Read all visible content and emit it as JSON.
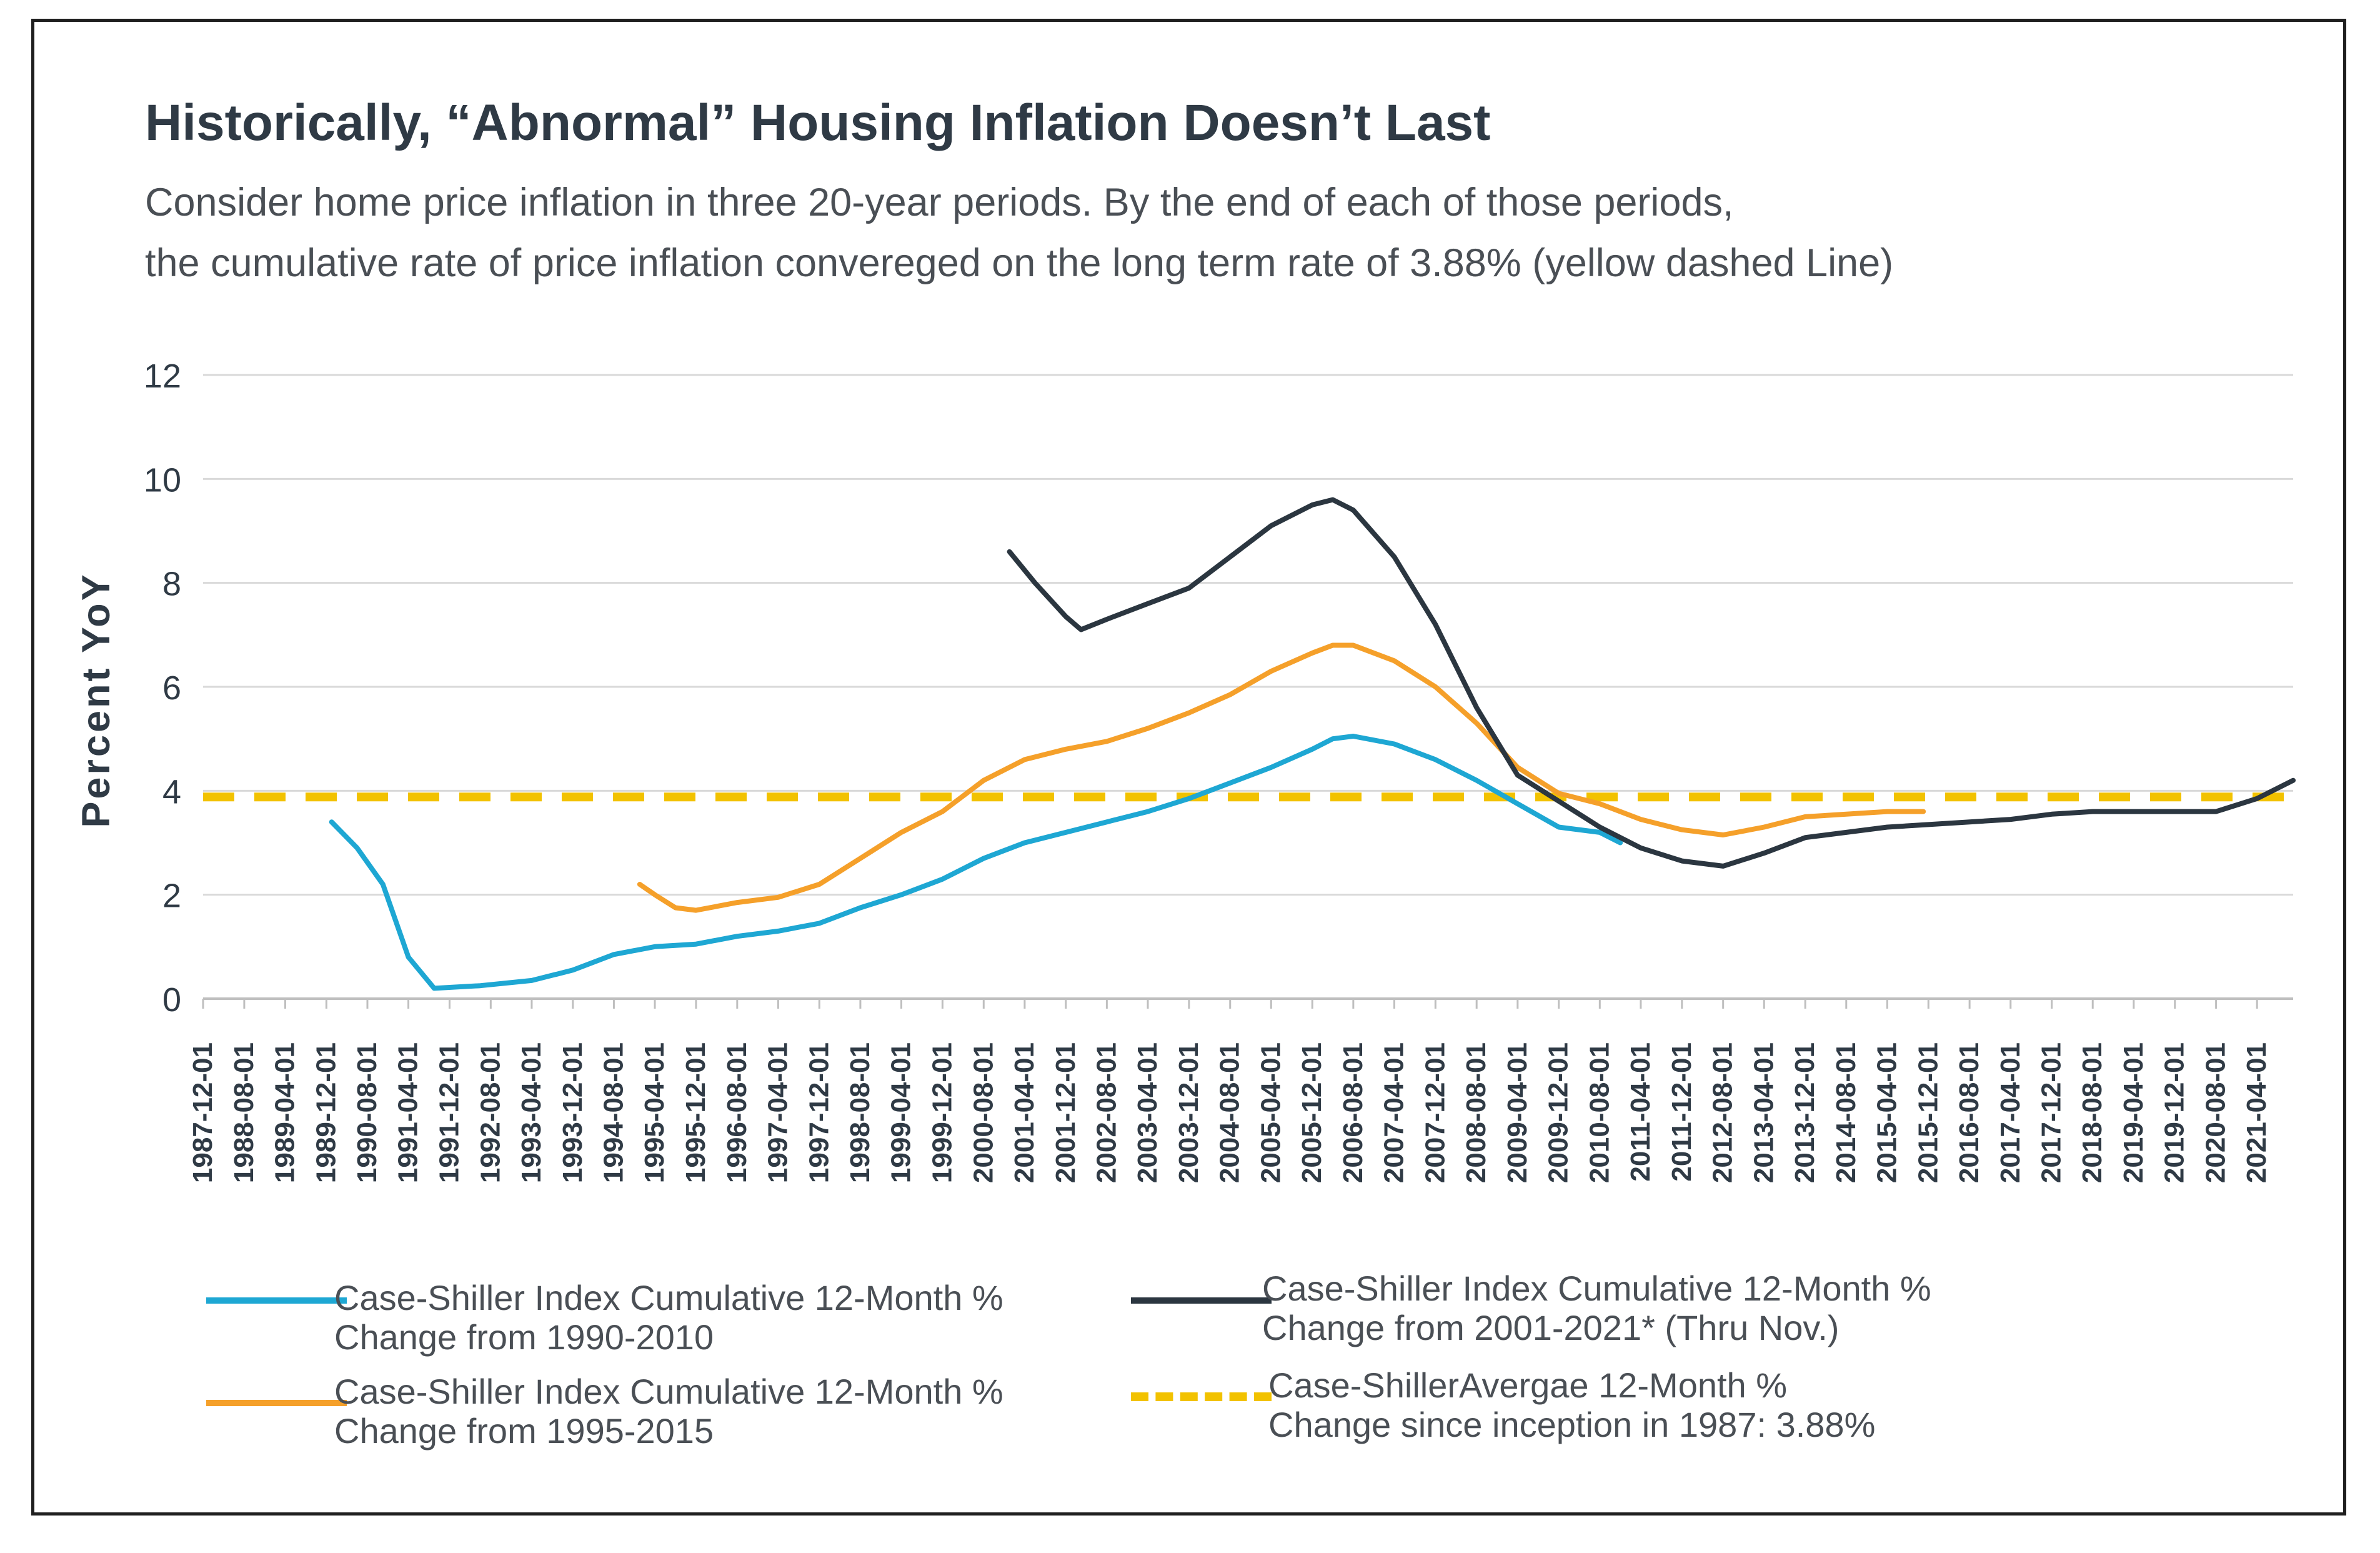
{
  "title": "Historically, “Abnormal” Housing Inflation Doesn’t Last",
  "subtitle_lines": [
    "Consider home price inflation in three 20-year periods. By the end of each of those periods,",
    "the cumulative rate of price inflation convereged on the long term rate of 3.88% (yellow dashed Line)"
  ],
  "colors": {
    "blue": "#1ea7d3",
    "orange": "#f5a02a",
    "navy": "#2b3640",
    "yellow": "#f2c200",
    "grid": "#d9d9d9",
    "text": "#2f3a45"
  },
  "legend": [
    {
      "line1": "Case-Shiller Index Cumulative 12-Month %",
      "line2": "Change from 1990-2010"
    },
    {
      "line1": "Case-Shiller Index Cumulative 12-Month %",
      "line2": "Change from 1995-2015"
    },
    {
      "line1": "Case-Shiller Index Cumulative 12-Month %",
      "line2": "Change from 2001-2021* (Thru Nov.)"
    },
    {
      "line1": "Case-ShillerAvergae 12-Month %",
      "line2": "Change since inception in 1987: 3.88%"
    }
  ],
  "chart_data": {
    "type": "line",
    "title": "Historically, “Abnormal” Housing Inflation Doesn’t Last",
    "ylabel": "Percent YoY",
    "xlabel": "",
    "ylim": [
      0,
      12
    ],
    "yticks": [
      0,
      2,
      4,
      6,
      8,
      10,
      12
    ],
    "grid": true,
    "legend_position": "bottom",
    "x_start": "1987-12-01",
    "x_end": "2021-11-01",
    "xticks": [
      "1987-12-01",
      "1988-08-01",
      "1989-04-01",
      "1989-12-01",
      "1990-08-01",
      "1991-04-01",
      "1991-12-01",
      "1992-08-01",
      "1993-04-01",
      "1993-12-01",
      "1994-08-01",
      "1995-04-01",
      "1995-12-01",
      "1996-08-01",
      "1997-04-01",
      "1997-12-01",
      "1998-08-01",
      "1999-04-01",
      "1999-12-01",
      "2000-08-01",
      "2001-04-01",
      "2001-12-01",
      "2002-08-01",
      "2003-04-01",
      "2003-12-01",
      "2004-08-01",
      "2005-04-01",
      "2005-12-01",
      "2006-08-01",
      "2007-04-01",
      "2007-12-01",
      "2008-08-01",
      "2009-04-01",
      "2009-12-01",
      "2010-08-01",
      "2011-04-01",
      "2011-12-01",
      "2012-08-01",
      "2013-04-01",
      "2013-12-01",
      "2014-08-01",
      "2015-04-01",
      "2015-12-01",
      "2016-08-01",
      "2017-04-01",
      "2017-12-01",
      "2018-08-01",
      "2019-04-01",
      "2019-12-01",
      "2020-08-01",
      "2021-04-01"
    ],
    "series": [
      {
        "name": "Case-Shiller Index Cumulative 12-Month % Change from 1990-2010",
        "color": "#1ea7d3",
        "style": "solid",
        "x": [
          "1990-01-01",
          "1990-06-01",
          "1990-11-01",
          "1991-04-01",
          "1991-09-01",
          "1992-06-01",
          "1993-04-01",
          "1993-12-01",
          "1994-08-01",
          "1995-04-01",
          "1995-12-01",
          "1996-08-01",
          "1997-04-01",
          "1997-12-01",
          "1998-08-01",
          "1999-04-01",
          "1999-12-01",
          "2000-08-01",
          "2001-04-01",
          "2001-12-01",
          "2002-08-01",
          "2003-04-01",
          "2003-12-01",
          "2004-08-01",
          "2005-04-01",
          "2005-12-01",
          "2006-04-01",
          "2006-08-01",
          "2007-04-01",
          "2007-12-01",
          "2008-08-01",
          "2009-04-01",
          "2009-12-01",
          "2010-08-01",
          "2010-12-01"
        ],
        "values": [
          3.4,
          2.9,
          2.2,
          0.8,
          0.2,
          0.25,
          0.35,
          0.55,
          0.85,
          1.0,
          1.05,
          1.2,
          1.3,
          1.45,
          1.75,
          2.0,
          2.3,
          2.7,
          3.0,
          3.2,
          3.4,
          3.6,
          3.85,
          4.15,
          4.45,
          4.8,
          5.0,
          5.05,
          4.9,
          4.6,
          4.2,
          3.75,
          3.3,
          3.2,
          3.0
        ]
      },
      {
        "name": "Case-Shiller Index Cumulative 12-Month % Change from 1995-2015",
        "color": "#f5a02a",
        "style": "solid",
        "x": [
          "1995-01-01",
          "1995-04-01",
          "1995-08-01",
          "1995-12-01",
          "1996-08-01",
          "1997-04-01",
          "1997-12-01",
          "1998-08-01",
          "1999-04-01",
          "1999-12-01",
          "2000-08-01",
          "2001-04-01",
          "2001-12-01",
          "2002-08-01",
          "2003-04-01",
          "2003-12-01",
          "2004-08-01",
          "2005-04-01",
          "2005-12-01",
          "2006-04-01",
          "2006-08-01",
          "2007-04-01",
          "2007-12-01",
          "2008-08-01",
          "2009-04-01",
          "2009-12-01",
          "2010-08-01",
          "2011-04-01",
          "2011-12-01",
          "2012-08-01",
          "2013-04-01",
          "2013-12-01",
          "2014-08-01",
          "2015-04-01",
          "2015-11-01"
        ],
        "values": [
          2.2,
          2.0,
          1.75,
          1.7,
          1.85,
          1.95,
          2.2,
          2.7,
          3.2,
          3.6,
          4.2,
          4.6,
          4.8,
          4.95,
          5.2,
          5.5,
          5.85,
          6.3,
          6.65,
          6.8,
          6.8,
          6.5,
          6.0,
          5.3,
          4.45,
          3.95,
          3.75,
          3.45,
          3.25,
          3.15,
          3.3,
          3.5,
          3.55,
          3.6,
          3.6
        ]
      },
      {
        "name": "Case-Shiller Index Cumulative 12-Month % Change from 2001-2021* (Thru Nov.)",
        "color": "#2b3640",
        "style": "solid",
        "x": [
          "2001-01-01",
          "2001-06-01",
          "2001-12-01",
          "2002-03-01",
          "2002-08-01",
          "2003-04-01",
          "2003-12-01",
          "2004-08-01",
          "2005-04-01",
          "2005-12-01",
          "2006-04-01",
          "2006-08-01",
          "2007-04-01",
          "2007-12-01",
          "2008-08-01",
          "2009-04-01",
          "2009-12-01",
          "2010-08-01",
          "2011-04-01",
          "2011-12-01",
          "2012-08-01",
          "2013-04-01",
          "2013-12-01",
          "2014-08-01",
          "2015-04-01",
          "2015-12-01",
          "2016-08-01",
          "2017-04-01",
          "2017-12-01",
          "2018-08-01",
          "2019-04-01",
          "2019-12-01",
          "2020-08-01",
          "2021-04-01",
          "2021-11-01"
        ],
        "values": [
          8.6,
          8.0,
          7.35,
          7.1,
          7.3,
          7.6,
          7.9,
          8.5,
          9.1,
          9.5,
          9.6,
          9.4,
          8.5,
          7.2,
          5.6,
          4.3,
          3.8,
          3.3,
          2.9,
          2.65,
          2.55,
          2.8,
          3.1,
          3.2,
          3.3,
          3.35,
          3.4,
          3.45,
          3.55,
          3.6,
          3.6,
          3.6,
          3.6,
          3.85,
          4.2
        ]
      },
      {
        "name": "Case-ShillerAvergae 12-Month % Change since inception in 1987: 3.88%",
        "color": "#f2c200",
        "style": "dashed",
        "x": [
          "1987-12-01",
          "2021-11-01"
        ],
        "values": [
          3.88,
          3.88
        ]
      }
    ]
  }
}
